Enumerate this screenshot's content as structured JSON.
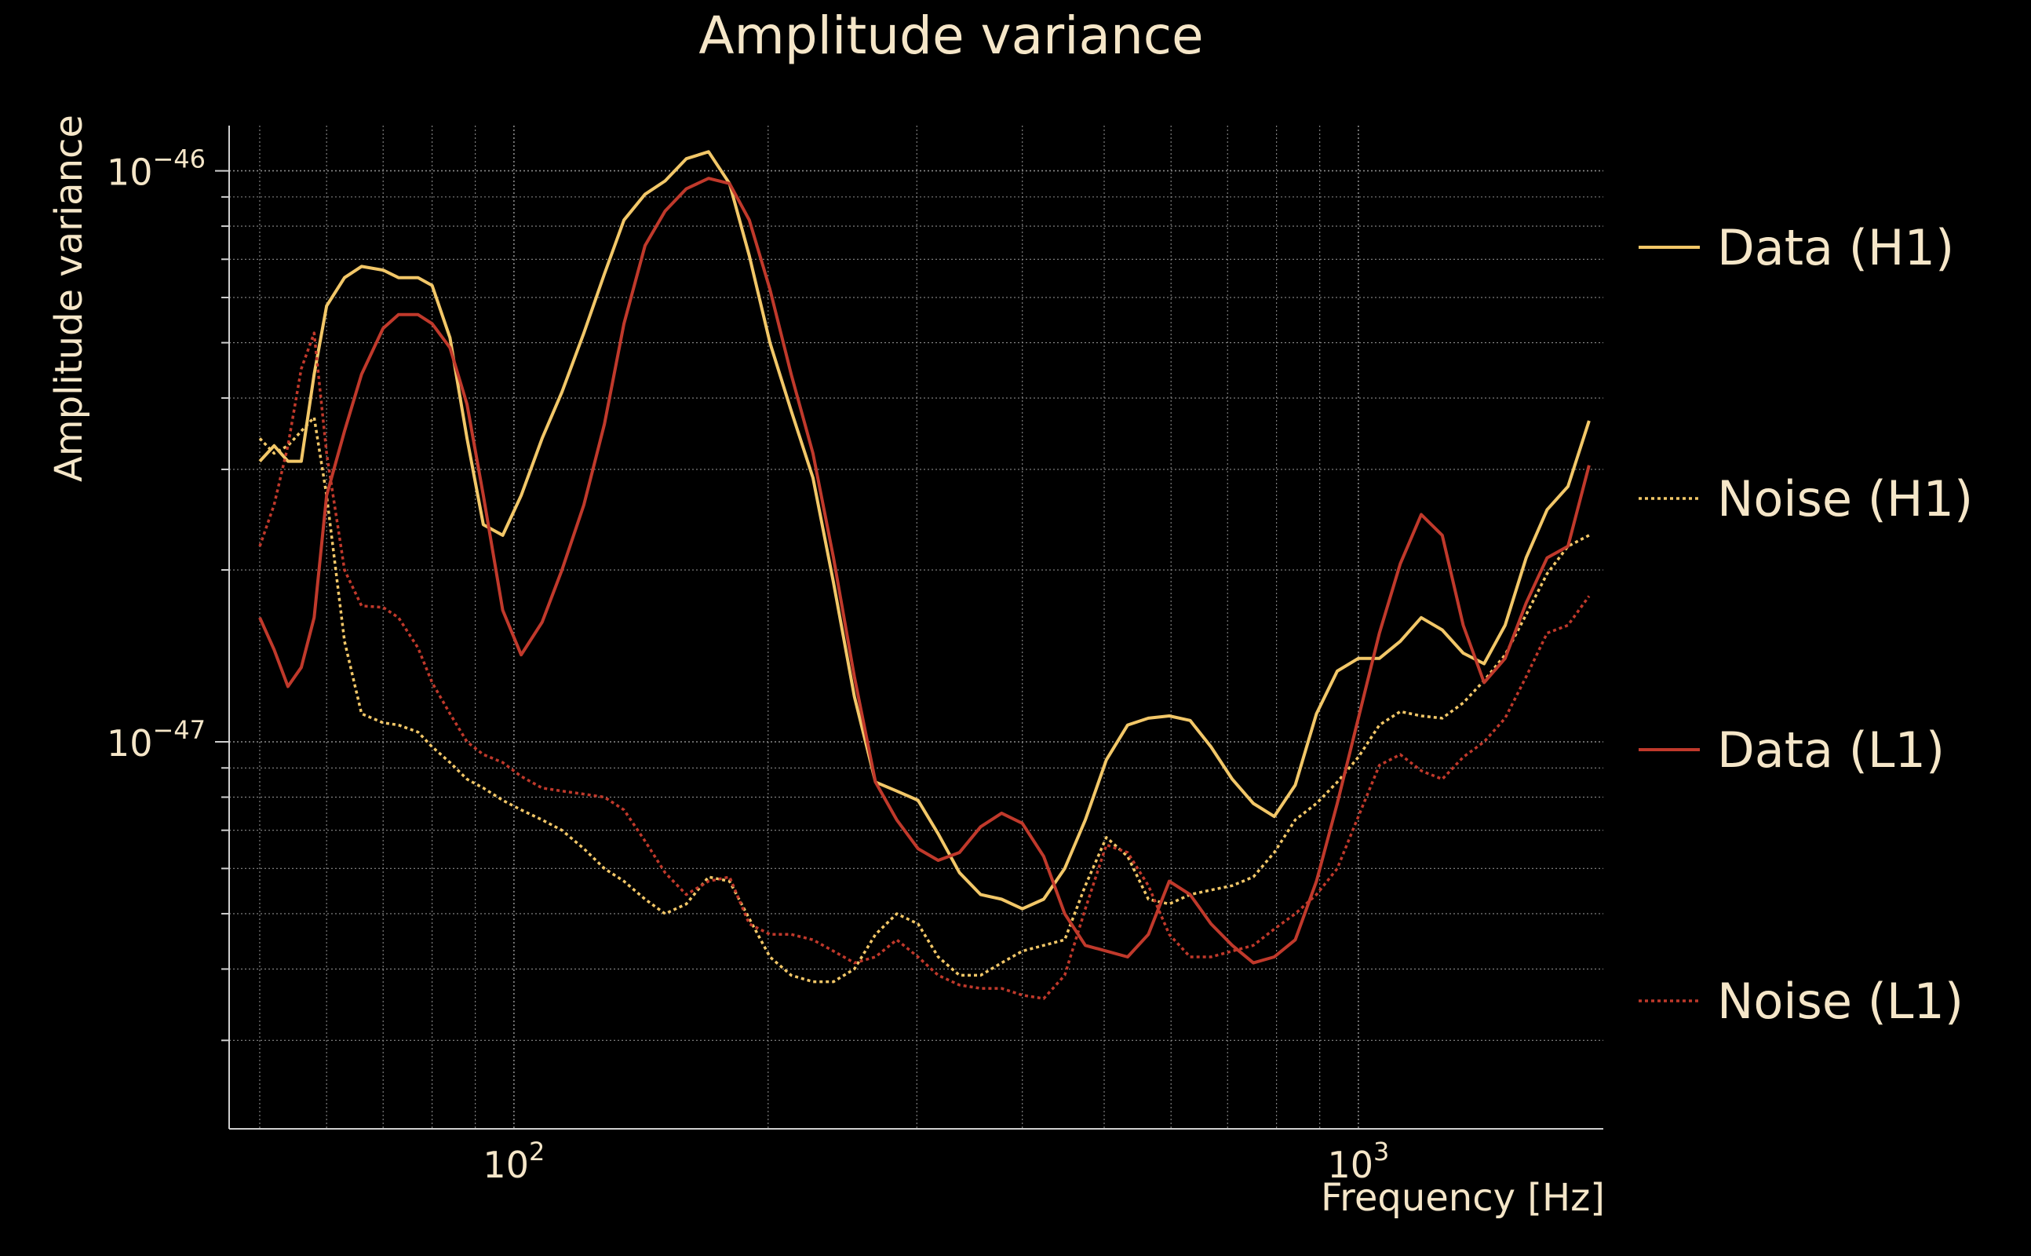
{
  "chart_data": {
    "type": "line",
    "title": "Amplitude variance",
    "xlabel": "Frequency [Hz]",
    "ylabel": "Amplitude variance",
    "xscale": "log",
    "yscale": "log",
    "xlim": [
      46,
      1950
    ],
    "ylim": [
      2.1e-48,
      1.2e-46
    ],
    "grid": true,
    "legend": "right",
    "x_ticks": [
      {
        "value": 100,
        "base": "10",
        "exp": "2"
      },
      {
        "value": 1000,
        "base": "10",
        "exp": "3"
      }
    ],
    "y_ticks": [
      {
        "value": 1e-46,
        "base": "10",
        "exp": "−46"
      },
      {
        "value": 1e-47,
        "base": "10",
        "exp": "−47"
      }
    ],
    "x": [
      50,
      52,
      54,
      56,
      58,
      60,
      63,
      66,
      70,
      73,
      77,
      80,
      84,
      88,
      92,
      97,
      102,
      108,
      114,
      121,
      128,
      135,
      143,
      151,
      160,
      170,
      180,
      190,
      201,
      213,
      226,
      239,
      253,
      268,
      284,
      301,
      318,
      337,
      357,
      378,
      400,
      424,
      449,
      475,
      503,
      533,
      564,
      597,
      632,
      669,
      709,
      751,
      795,
      842,
      892,
      944,
      1000,
      1059,
      1121,
      1187,
      1257,
      1331,
      1409,
      1492,
      1580,
      1673,
      1771,
      1876
    ],
    "series": [
      {
        "name": "Data (H1)",
        "color": "#f2c768",
        "dash": "solid",
        "values": [
          3.1e-47,
          3.3e-47,
          3.1e-47,
          3.1e-47,
          4.4e-47,
          5.8e-47,
          6.5e-47,
          6.8e-47,
          6.7e-47,
          6.5e-47,
          6.5e-47,
          6.3e-47,
          5.1e-47,
          3.4e-47,
          2.4e-47,
          2.3e-47,
          2.7e-47,
          3.4e-47,
          4.1e-47,
          5.2e-47,
          6.6e-47,
          8.2e-47,
          9.1e-47,
          9.6e-47,
          1.05e-46,
          1.08e-46,
          9.5e-47,
          7.1e-47,
          5e-47,
          3.8e-47,
          2.9e-47,
          1.9e-47,
          1.2e-47,
          8.5e-48,
          8.2e-48,
          7.9e-48,
          6.9e-48,
          5.9e-48,
          5.4e-48,
          5.3e-48,
          5.1e-48,
          5.3e-48,
          6e-48,
          7.3e-48,
          9.3e-48,
          1.07e-47,
          1.1e-47,
          1.11e-47,
          1.09e-47,
          9.8e-48,
          8.6e-48,
          7.8e-48,
          7.4e-48,
          8.4e-48,
          1.12e-47,
          1.33e-47,
          1.4e-47,
          1.4e-47,
          1.5e-47,
          1.65e-47,
          1.57e-47,
          1.43e-47,
          1.37e-47,
          1.6e-47,
          2.1e-47,
          2.55e-47,
          2.8e-47,
          3.65e-47
        ]
      },
      {
        "name": "Noise (H1)",
        "color": "#f2c768",
        "dash": "dotted",
        "values": [
          3.4e-47,
          3.2e-47,
          3.3e-47,
          3.5e-47,
          3.7e-47,
          2.7e-47,
          1.5e-47,
          1.12e-47,
          1.08e-47,
          1.07e-47,
          1.04e-47,
          9.8e-48,
          9.2e-48,
          8.6e-48,
          8.3e-48,
          7.9e-48,
          7.6e-48,
          7.3e-48,
          7e-48,
          6.5e-48,
          6e-48,
          5.7e-48,
          5.3e-48,
          5e-48,
          5.2e-48,
          5.8e-48,
          5.7e-48,
          4.9e-48,
          4.2e-48,
          3.9e-48,
          3.8e-48,
          3.8e-48,
          4e-48,
          4.6e-48,
          5e-48,
          4.8e-48,
          4.2e-48,
          3.9e-48,
          3.9e-48,
          4.1e-48,
          4.3e-48,
          4.4e-48,
          4.5e-48,
          5.6e-48,
          6.8e-48,
          6.3e-48,
          5.3e-48,
          5.2e-48,
          5.4e-48,
          5.5e-48,
          5.6e-48,
          5.8e-48,
          6.4e-48,
          7.3e-48,
          7.8e-48,
          8.5e-48,
          9.4e-48,
          1.07e-47,
          1.13e-47,
          1.11e-47,
          1.1e-47,
          1.17e-47,
          1.28e-47,
          1.42e-47,
          1.67e-47,
          1.97e-47,
          2.2e-47,
          2.3e-47
        ]
      },
      {
        "name": "Data (L1)",
        "color": "#c0392b",
        "dash": "solid",
        "values": [
          1.65e-47,
          1.45e-47,
          1.25e-47,
          1.35e-47,
          1.65e-47,
          2.7e-47,
          3.5e-47,
          4.4e-47,
          5.3e-47,
          5.6e-47,
          5.6e-47,
          5.4e-47,
          4.9e-47,
          3.9e-47,
          2.7e-47,
          1.7e-47,
          1.42e-47,
          1.62e-47,
          2e-47,
          2.6e-47,
          3.6e-47,
          5.4e-47,
          7.4e-47,
          8.5e-47,
          9.3e-47,
          9.7e-47,
          9.5e-47,
          8.2e-47,
          6.2e-47,
          4.4e-47,
          3.2e-47,
          2.1e-47,
          1.3e-47,
          8.5e-48,
          7.3e-48,
          6.5e-48,
          6.2e-48,
          6.4e-48,
          7.1e-48,
          7.5e-48,
          7.2e-48,
          6.3e-48,
          5e-48,
          4.4e-48,
          4.3e-48,
          4.2e-48,
          4.6e-48,
          5.7e-48,
          5.4e-48,
          4.8e-48,
          4.4e-48,
          4.1e-48,
          4.2e-48,
          4.5e-48,
          5.7e-48,
          7.8e-48,
          1.1e-47,
          1.55e-47,
          2.05e-47,
          2.5e-47,
          2.3e-47,
          1.6e-47,
          1.27e-47,
          1.4e-47,
          1.75e-47,
          2.1e-47,
          2.2e-47,
          3.05e-47
        ]
      },
      {
        "name": "Noise (L1)",
        "color": "#c0392b",
        "dash": "dotted",
        "values": [
          2.2e-47,
          2.6e-47,
          3.3e-47,
          4.5e-47,
          5.2e-47,
          3.2e-47,
          2e-47,
          1.73e-47,
          1.72e-47,
          1.65e-47,
          1.46e-47,
          1.27e-47,
          1.12e-47,
          1e-47,
          9.5e-48,
          9.2e-48,
          8.7e-48,
          8.3e-48,
          8.2e-48,
          8.1e-48,
          8e-48,
          7.6e-48,
          6.7e-48,
          5.9e-48,
          5.4e-48,
          5.7e-48,
          5.8e-48,
          4.8e-48,
          4.6e-48,
          4.6e-48,
          4.5e-48,
          4.3e-48,
          4.1e-48,
          4.2e-48,
          4.5e-48,
          4.2e-48,
          3.9e-48,
          3.75e-48,
          3.7e-48,
          3.7e-48,
          3.6e-48,
          3.55e-48,
          3.9e-48,
          5.1e-48,
          6.6e-48,
          6.4e-48,
          5.6e-48,
          4.6e-48,
          4.2e-48,
          4.2e-48,
          4.3e-48,
          4.4e-48,
          4.7e-48,
          5e-48,
          5.4e-48,
          6e-48,
          7.4e-48,
          9.1e-48,
          9.5e-48,
          8.9e-48,
          8.6e-48,
          9.4e-48,
          1e-47,
          1.1e-47,
          1.3e-47,
          1.55e-47,
          1.6e-47,
          1.8e-47
        ]
      }
    ]
  }
}
